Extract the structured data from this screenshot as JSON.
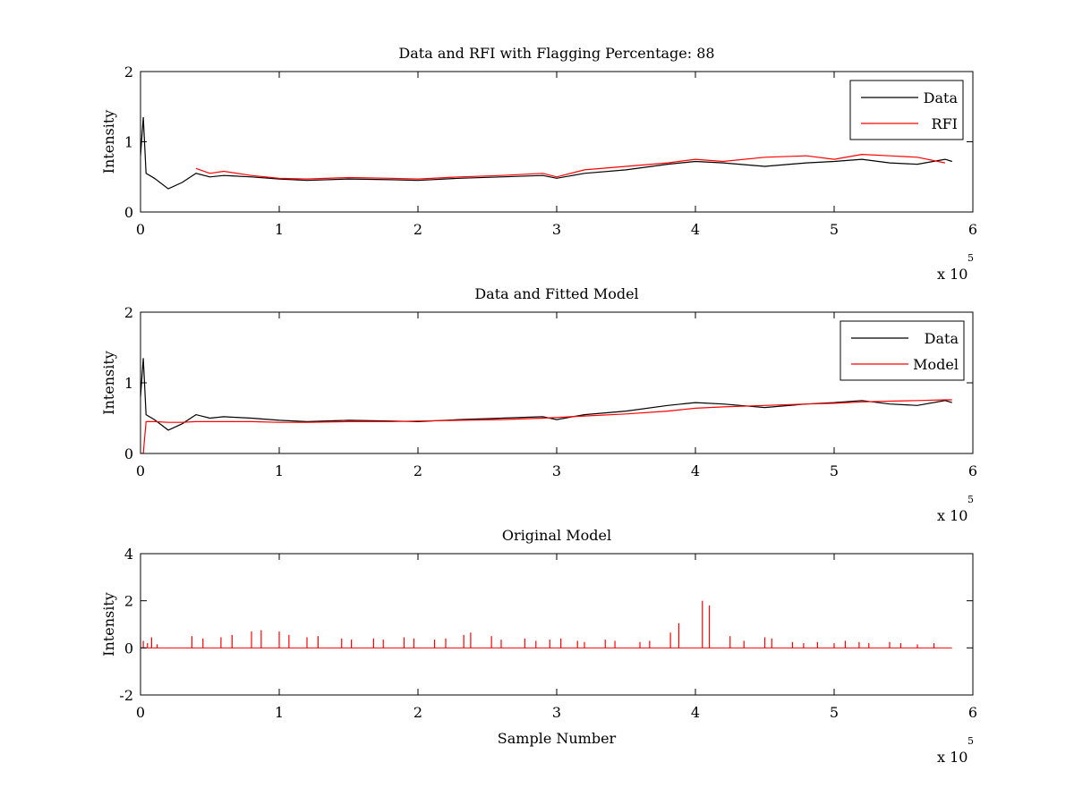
{
  "chart_data": [
    {
      "type": "line",
      "title": "Data and RFI with Flagging Percentage: 88",
      "xlabel": "",
      "ylabel": "Intensity",
      "xlim": [
        0,
        6
      ],
      "ylim": [
        0,
        2
      ],
      "xticks": [
        "0",
        "1",
        "2",
        "3",
        "4",
        "5",
        "6"
      ],
      "yticks": [
        "0",
        "1",
        "2"
      ],
      "x_exponent": {
        "base": "x 10",
        "power": "5"
      },
      "legend_position": "top-right",
      "x": [
        0.0,
        0.02,
        0.04,
        0.1,
        0.2,
        0.3,
        0.4,
        0.5,
        0.6,
        0.8,
        1.0,
        1.2,
        1.5,
        1.8,
        2.0,
        2.3,
        2.6,
        2.9,
        3.0,
        3.2,
        3.5,
        3.8,
        4.0,
        4.2,
        4.5,
        4.8,
        5.0,
        5.2,
        5.4,
        5.6,
        5.8,
        5.85
      ],
      "series": [
        {
          "name": "Data",
          "color": "#000000",
          "values": [
            0.8,
            1.35,
            0.55,
            0.48,
            0.33,
            0.42,
            0.55,
            0.5,
            0.52,
            0.5,
            0.47,
            0.45,
            0.47,
            0.46,
            0.45,
            0.48,
            0.5,
            0.52,
            0.48,
            0.55,
            0.6,
            0.68,
            0.72,
            0.7,
            0.65,
            0.7,
            0.72,
            0.75,
            0.7,
            0.68,
            0.75,
            0.72
          ]
        },
        {
          "name": "RFI",
          "color": "#ff0000",
          "values": [
            null,
            null,
            null,
            null,
            null,
            null,
            0.62,
            0.55,
            0.58,
            0.52,
            0.48,
            0.47,
            0.49,
            0.48,
            0.47,
            0.5,
            0.52,
            0.55,
            0.5,
            0.6,
            0.65,
            0.7,
            0.75,
            0.72,
            0.78,
            0.8,
            0.75,
            0.82,
            0.8,
            0.78,
            0.7,
            null
          ]
        }
      ]
    },
    {
      "type": "line",
      "title": "Data and Fitted Model",
      "xlabel": "",
      "ylabel": "Intensity",
      "xlim": [
        0,
        6
      ],
      "ylim": [
        0,
        2
      ],
      "xticks": [
        "0",
        "1",
        "2",
        "3",
        "4",
        "5",
        "6"
      ],
      "yticks": [
        "0",
        "1",
        "2"
      ],
      "x_exponent": {
        "base": "x 10",
        "power": "5"
      },
      "legend_position": "top-right",
      "x": [
        0.0,
        0.02,
        0.04,
        0.1,
        0.2,
        0.3,
        0.4,
        0.5,
        0.6,
        0.8,
        1.0,
        1.2,
        1.5,
        1.8,
        2.0,
        2.3,
        2.6,
        2.9,
        3.0,
        3.2,
        3.5,
        3.8,
        4.0,
        4.2,
        4.5,
        4.8,
        5.0,
        5.2,
        5.4,
        5.6,
        5.8,
        5.85
      ],
      "series": [
        {
          "name": "Data",
          "color": "#000000",
          "values": [
            0.8,
            1.35,
            0.55,
            0.48,
            0.33,
            0.42,
            0.55,
            0.5,
            0.52,
            0.5,
            0.47,
            0.45,
            0.47,
            0.46,
            0.45,
            0.48,
            0.5,
            0.52,
            0.48,
            0.55,
            0.6,
            0.68,
            0.72,
            0.7,
            0.65,
            0.7,
            0.72,
            0.75,
            0.7,
            0.68,
            0.75,
            0.72
          ]
        },
        {
          "name": "Model",
          "color": "#ff0000",
          "values": [
            0.0,
            0.0,
            0.45,
            0.45,
            0.44,
            0.44,
            0.45,
            0.45,
            0.45,
            0.45,
            0.44,
            0.44,
            0.45,
            0.45,
            0.46,
            0.47,
            0.48,
            0.5,
            0.51,
            0.53,
            0.56,
            0.6,
            0.64,
            0.66,
            0.68,
            0.7,
            0.71,
            0.73,
            0.74,
            0.75,
            0.76,
            0.76
          ]
        }
      ]
    },
    {
      "type": "line",
      "title": "Original Model",
      "xlabel": "Sample Number",
      "ylabel": "Intensity",
      "xlim": [
        0,
        6
      ],
      "ylim": [
        -2,
        4
      ],
      "xticks": [
        "0",
        "1",
        "2",
        "3",
        "4",
        "5",
        "6"
      ],
      "yticks": [
        "-2",
        "0",
        "2",
        "4"
      ],
      "x_exponent": {
        "base": "x 10",
        "power": "5"
      },
      "baseline": 0,
      "series": [
        {
          "name": "",
          "color": "#ff0000",
          "spikes_x": [
            0.02,
            0.05,
            0.08,
            0.12,
            0.37,
            0.45,
            0.58,
            0.66,
            0.8,
            0.87,
            1.0,
            1.07,
            1.2,
            1.28,
            1.45,
            1.52,
            1.68,
            1.75,
            1.9,
            1.97,
            2.12,
            2.2,
            2.33,
            2.38,
            2.53,
            2.6,
            2.77,
            2.85,
            2.95,
            3.03,
            3.15,
            3.2,
            3.35,
            3.42,
            3.6,
            3.67,
            3.82,
            3.88,
            4.05,
            4.1,
            4.25,
            4.35,
            4.5,
            4.55,
            4.7,
            4.78,
            4.88,
            5.0,
            5.08,
            5.18,
            5.25,
            5.4,
            5.48,
            5.6,
            5.72
          ],
          "spikes_y": [
            0.3,
            0.2,
            0.45,
            0.15,
            0.5,
            0.4,
            0.45,
            0.55,
            0.7,
            0.75,
            0.7,
            0.55,
            0.45,
            0.5,
            0.4,
            0.35,
            0.4,
            0.35,
            0.45,
            0.4,
            0.35,
            0.4,
            0.55,
            0.65,
            0.5,
            0.35,
            0.4,
            0.3,
            0.35,
            0.4,
            0.3,
            0.25,
            0.35,
            0.3,
            0.25,
            0.3,
            0.65,
            1.05,
            2.0,
            1.8,
            0.5,
            0.3,
            0.45,
            0.4,
            0.25,
            0.2,
            0.25,
            0.2,
            0.3,
            0.25,
            0.2,
            0.25,
            0.2,
            0.15,
            0.2
          ]
        }
      ]
    }
  ]
}
